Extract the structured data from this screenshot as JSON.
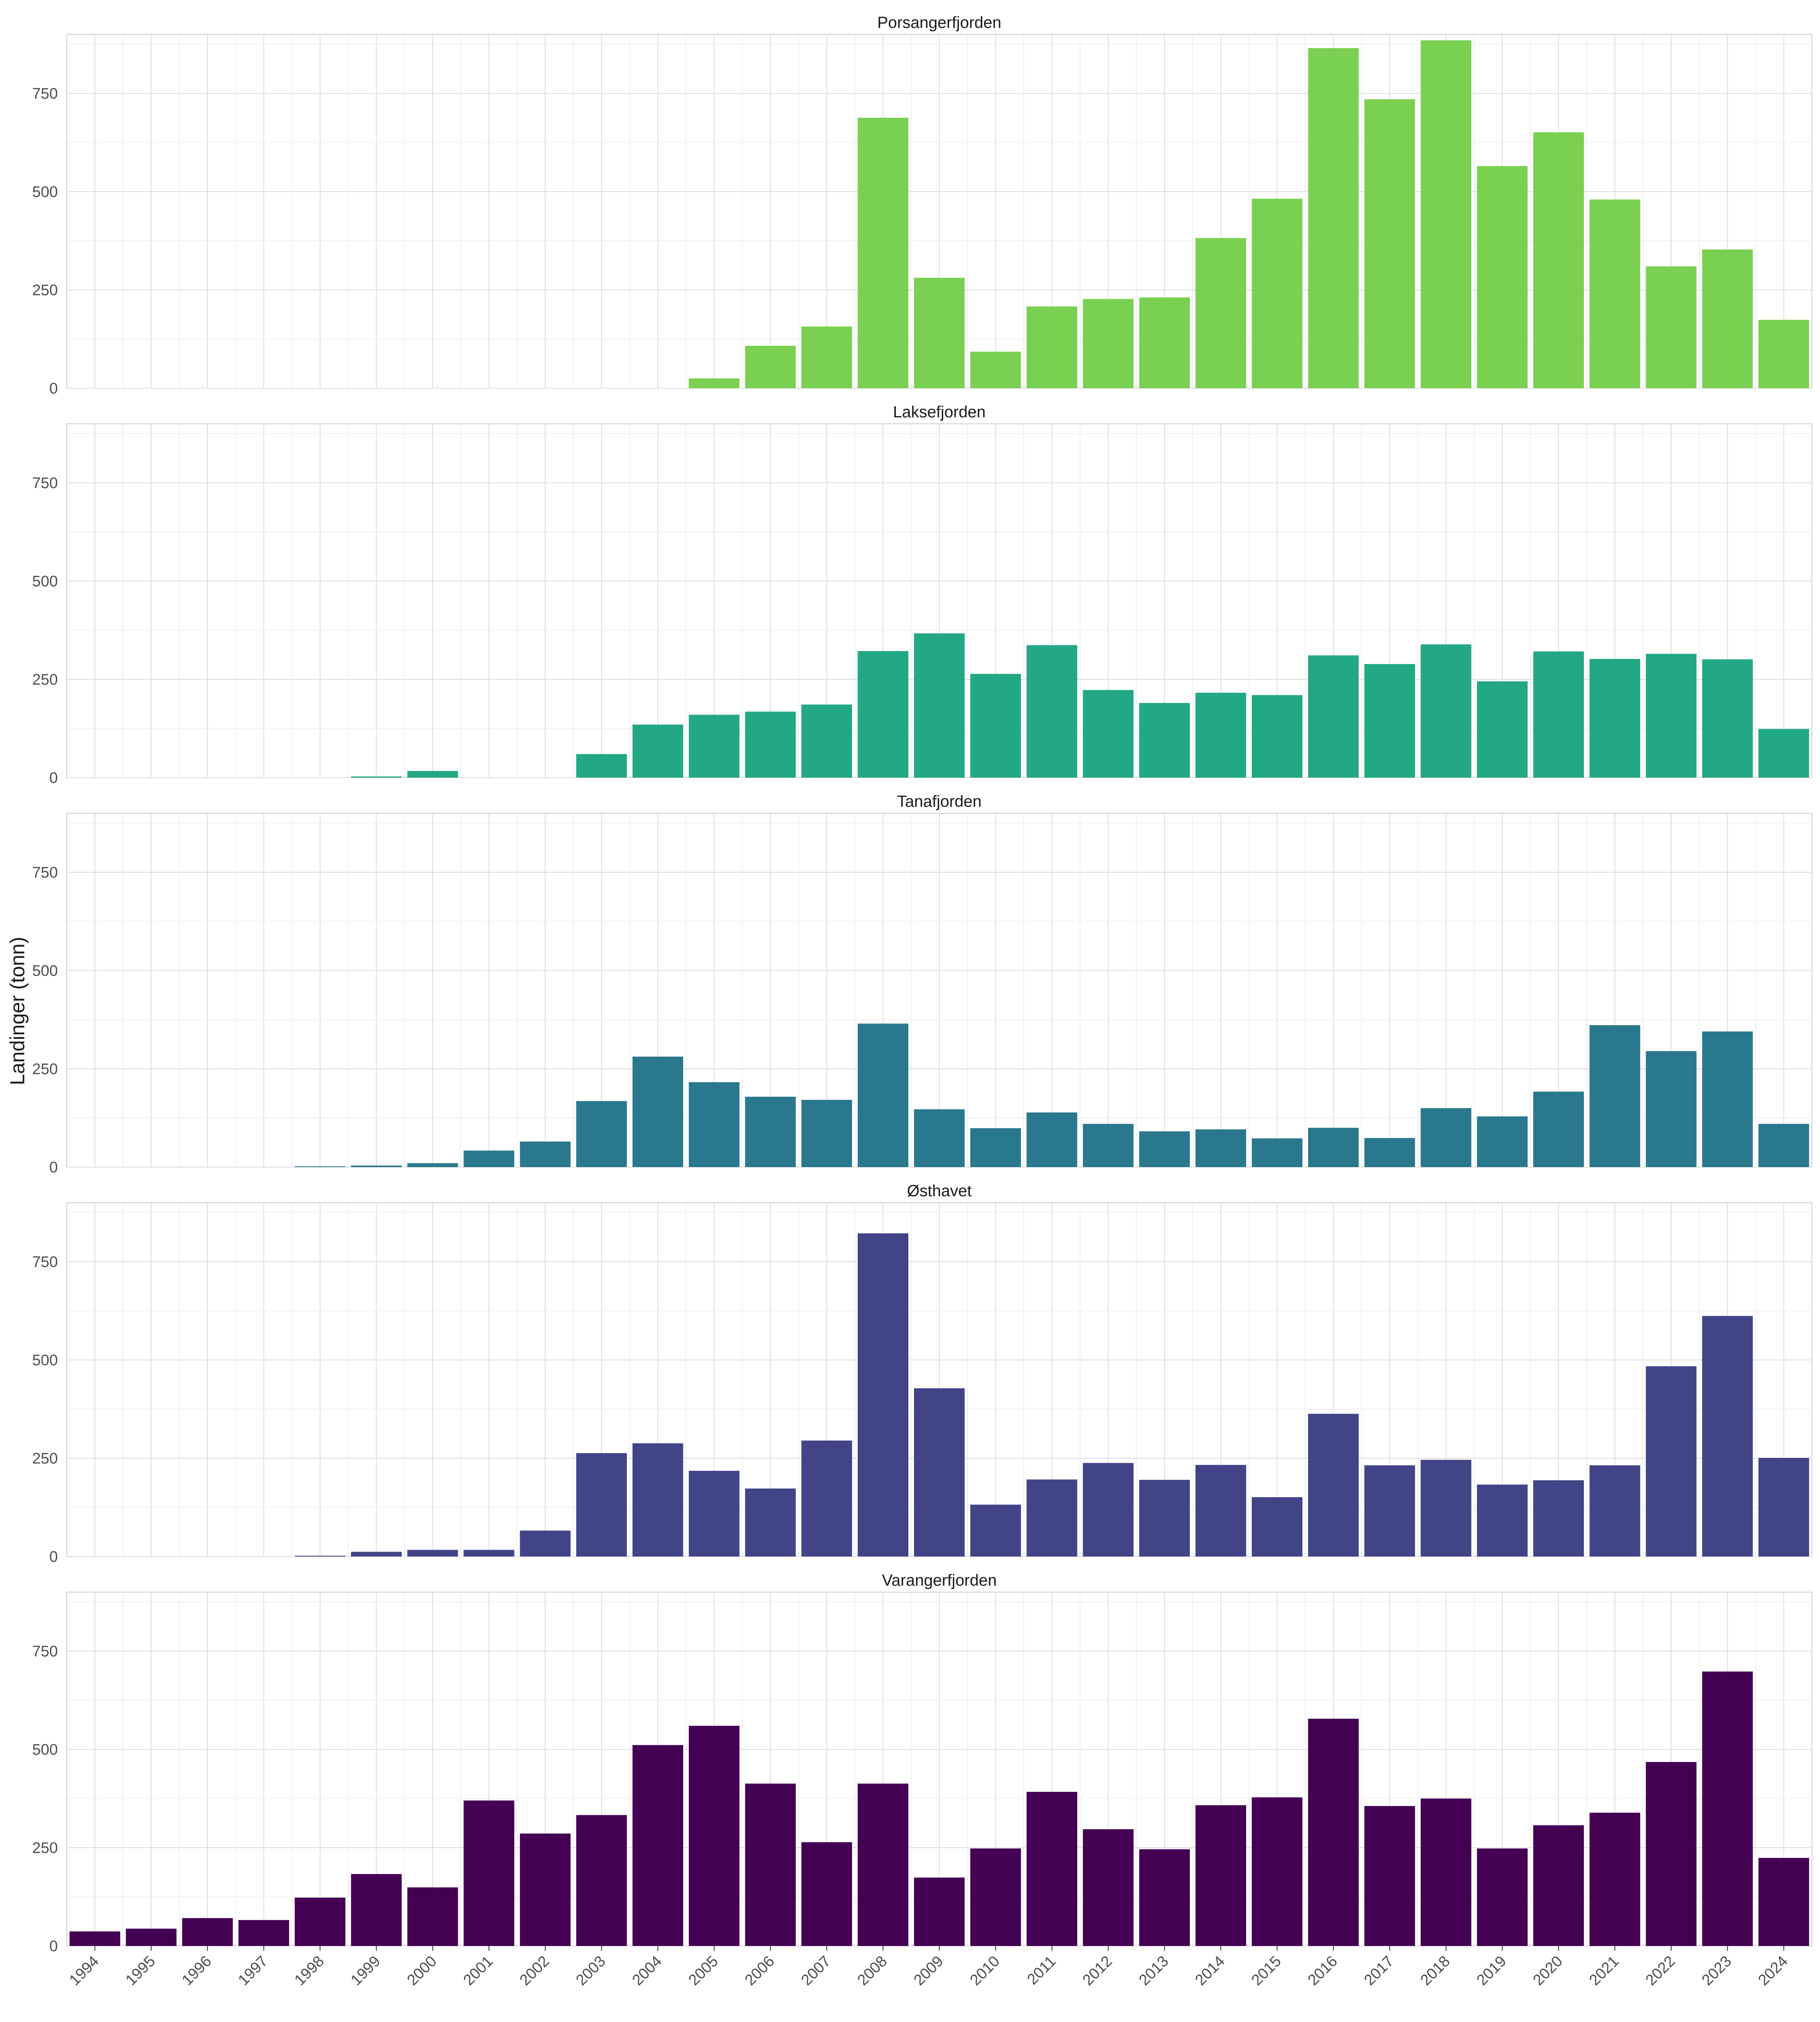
{
  "chart_data": {
    "type": "bar",
    "ylabel": "Landinger (tonn)",
    "xlabel": "",
    "ylim": [
      0,
      900
    ],
    "yticks": [
      0,
      250,
      500,
      750
    ],
    "grid": true,
    "categories": [
      "1994",
      "1995",
      "1996",
      "1997",
      "1998",
      "1999",
      "2000",
      "2001",
      "2002",
      "2003",
      "2004",
      "2005",
      "2006",
      "2007",
      "2008",
      "2009",
      "2010",
      "2011",
      "2012",
      "2013",
      "2014",
      "2015",
      "2016",
      "2017",
      "2018",
      "2019",
      "2020",
      "2021",
      "2022",
      "2023",
      "2024"
    ],
    "panels": [
      {
        "title": "Porsangerfjorden",
        "color": "#7AD151",
        "values": [
          0,
          0,
          0,
          0,
          0,
          0,
          0,
          0,
          0,
          0,
          0,
          25,
          108,
          157,
          688,
          281,
          93,
          208,
          227,
          231,
          382,
          482,
          865,
          735,
          885,
          565,
          651,
          480,
          310,
          353,
          174
        ]
      },
      {
        "title": "Laksefjorden",
        "color": "#22A884",
        "values": [
          0,
          0,
          0,
          0,
          0,
          3,
          17,
          0,
          0,
          60,
          135,
          160,
          168,
          186,
          322,
          367,
          264,
          337,
          223,
          190,
          216,
          210,
          311,
          289,
          339,
          245,
          321,
          302,
          315,
          301,
          124
        ]
      },
      {
        "title": "Tanafjorden",
        "color": "#2A788E",
        "values": [
          0,
          0,
          0,
          0,
          2,
          4,
          10,
          42,
          65,
          168,
          281,
          216,
          179,
          171,
          365,
          147,
          99,
          139,
          110,
          91,
          96,
          73,
          100,
          74,
          150,
          129,
          192,
          361,
          295,
          345,
          110
        ]
      },
      {
        "title": "Østhavet",
        "color": "#414487",
        "values": [
          0,
          0,
          0,
          0,
          2,
          12,
          17,
          17,
          66,
          263,
          288,
          218,
          173,
          295,
          822,
          428,
          132,
          196,
          238,
          195,
          233,
          151,
          363,
          232,
          246,
          183,
          194,
          232,
          484,
          612,
          251
        ]
      },
      {
        "title": "Varangerfjorden",
        "color": "#440154",
        "values": [
          37,
          44,
          71,
          66,
          123,
          183,
          149,
          370,
          286,
          333,
          511,
          560,
          413,
          264,
          413,
          174,
          248,
          392,
          297,
          246,
          358,
          378,
          578,
          356,
          375,
          248,
          307,
          339,
          468,
          698,
          224
        ]
      }
    ]
  }
}
